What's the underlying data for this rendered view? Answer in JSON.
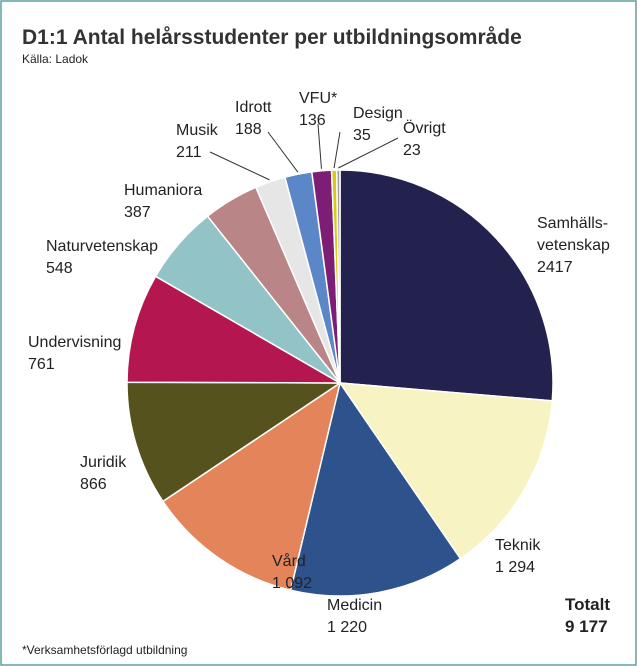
{
  "chart_data": {
    "type": "pie",
    "title": "D1:1 Antal helårsstudenter per utbildningsområde",
    "subtitle": "Källa: Ladok",
    "footnote": "*Verksamhetsförlagd utbildning",
    "total_label": "Totalt",
    "total": "9 177",
    "categories": [
      "Samhälls-\nvetenskap",
      "Teknik",
      "Medicin",
      "Vård",
      "Juridik",
      "Undervisning",
      "Naturvetenskap",
      "Humaniora",
      "Musik",
      "Idrott",
      "VFU*",
      "Design",
      "Övrigt"
    ],
    "values": [
      2417,
      1294,
      1220,
      1092,
      866,
      761,
      548,
      387,
      211,
      188,
      136,
      35,
      23
    ],
    "value_labels": [
      "2417",
      "1 294",
      "1 220",
      "1 092",
      "866",
      "761",
      "548",
      "387",
      "211",
      "188",
      "136",
      "35",
      "23"
    ],
    "colors": [
      "#23224f",
      "#f8f3c3",
      "#2e528c",
      "#e3845a",
      "#55521e",
      "#b4164f",
      "#92c3c6",
      "#ba8587",
      "#e6e6e6",
      "#5b87c8",
      "#7d1e76",
      "#d9c814",
      "#a0a0a0"
    ]
  }
}
